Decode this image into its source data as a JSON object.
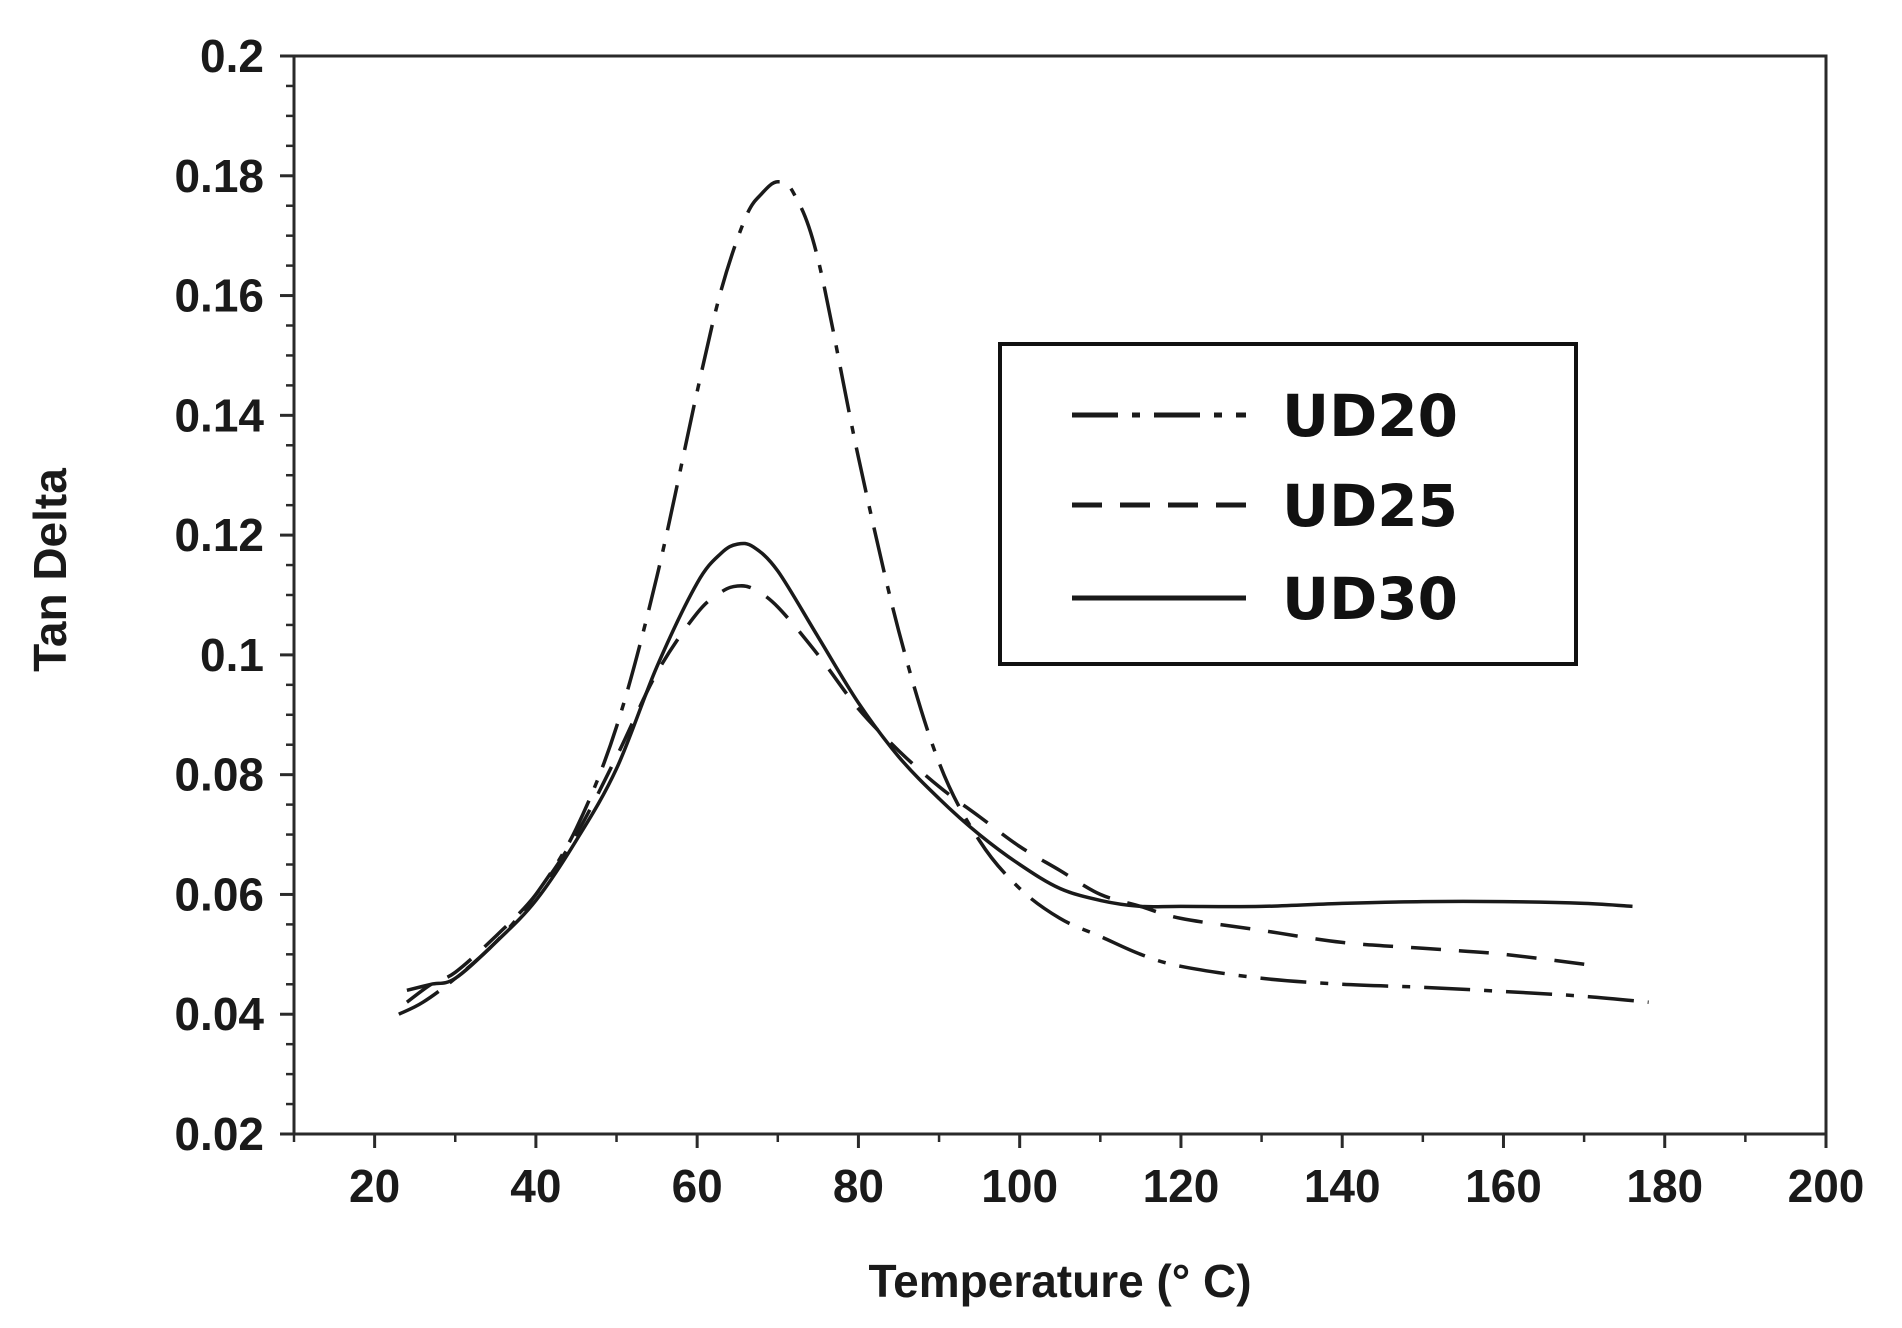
{
  "chart_data": {
    "type": "line",
    "title": "",
    "xlabel": "Temperature (° C)",
    "ylabel": "Tan Delta",
    "xlim": [
      10,
      200
    ],
    "ylim": [
      0.02,
      0.2
    ],
    "x_ticks": [
      20,
      40,
      60,
      80,
      100,
      120,
      140,
      160,
      180,
      200
    ],
    "y_ticks": [
      0.02,
      0.04,
      0.06,
      0.08,
      0.1,
      0.12,
      0.14,
      0.16,
      0.18,
      0.2
    ],
    "x_tick_labels": [
      "20",
      "40",
      "60",
      "80",
      "100",
      "120",
      "140",
      "160",
      "180",
      "200"
    ],
    "y_tick_labels": [
      "0.02",
      "0.04",
      "0.06",
      "0.08",
      "0.1",
      "0.12",
      "0.14",
      "0.16",
      "0.18",
      "0.2"
    ],
    "grid": false,
    "legend_position": "top-right",
    "series": [
      {
        "name": "UD20",
        "line_style": "dash-dot",
        "x": [
          23,
          26,
          30,
          35,
          40,
          45,
          50,
          55,
          60,
          63,
          66,
          68,
          70,
          72,
          75,
          80,
          85,
          90,
          95,
          100,
          105,
          110,
          115,
          120,
          130,
          140,
          150,
          160,
          170,
          178
        ],
        "y": [
          0.04,
          0.042,
          0.046,
          0.052,
          0.06,
          0.071,
          0.088,
          0.113,
          0.144,
          0.161,
          0.173,
          0.177,
          0.179,
          0.177,
          0.166,
          0.133,
          0.104,
          0.082,
          0.069,
          0.061,
          0.056,
          0.053,
          0.05,
          0.048,
          0.046,
          0.045,
          0.0445,
          0.0438,
          0.043,
          0.042
        ]
      },
      {
        "name": "UD25",
        "line_style": "dash",
        "x": [
          24,
          27,
          30,
          35,
          40,
          45,
          50,
          55,
          60,
          63,
          65,
          67,
          70,
          75,
          80,
          85,
          90,
          95,
          100,
          105,
          110,
          115,
          120,
          130,
          140,
          150,
          160,
          172
        ],
        "y": [
          0.042,
          0.045,
          0.047,
          0.053,
          0.06,
          0.07,
          0.083,
          0.097,
          0.107,
          0.1105,
          0.1115,
          0.111,
          0.108,
          0.1,
          0.091,
          0.084,
          0.078,
          0.073,
          0.068,
          0.064,
          0.06,
          0.058,
          0.056,
          0.054,
          0.052,
          0.051,
          0.05,
          0.048
        ]
      },
      {
        "name": "UD30",
        "line_style": "solid",
        "x": [
          24,
          27,
          30,
          35,
          40,
          45,
          50,
          55,
          60,
          63,
          65,
          67,
          70,
          75,
          80,
          85,
          90,
          95,
          100,
          105,
          110,
          115,
          120,
          130,
          140,
          150,
          160,
          170,
          176
        ],
        "y": [
          0.044,
          0.045,
          0.046,
          0.052,
          0.059,
          0.069,
          0.081,
          0.098,
          0.112,
          0.117,
          0.1185,
          0.118,
          0.114,
          0.103,
          0.092,
          0.083,
          0.076,
          0.07,
          0.065,
          0.061,
          0.059,
          0.058,
          0.058,
          0.058,
          0.0585,
          0.0588,
          0.0588,
          0.0585,
          0.058
        ]
      }
    ]
  }
}
